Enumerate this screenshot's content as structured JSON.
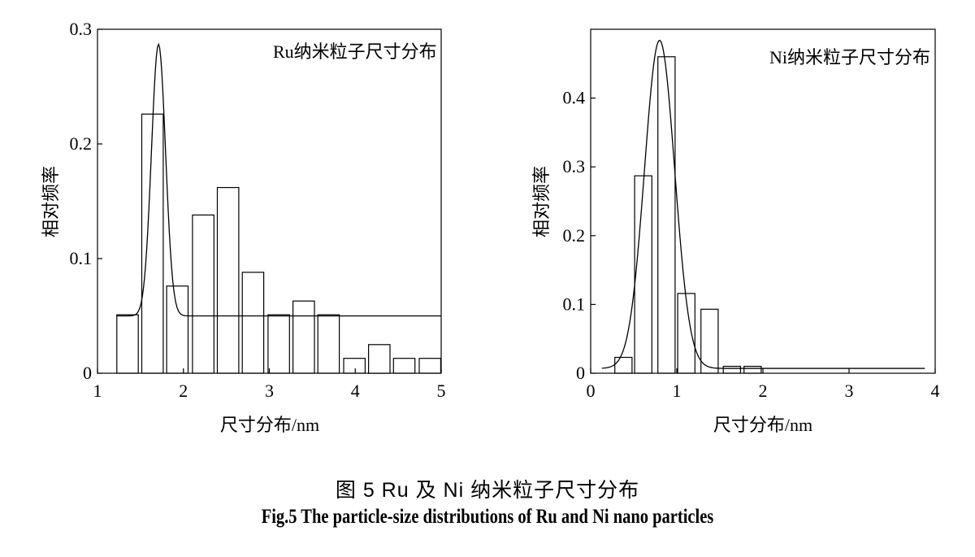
{
  "caption": {
    "cn": "图 5   Ru 及 Ni 纳米粒子尺寸分布",
    "en": "Fig.5 The particle-size distributions of Ru and Ni nano particles"
  },
  "chart_data": [
    {
      "type": "bar",
      "title": "Ru纳米粒子尺寸分布",
      "xlabel": "尺寸分布/nm",
      "ylabel": "相对频率",
      "xlim": [
        1,
        5
      ],
      "ylim": [
        0,
        0.3
      ],
      "xticks": [
        "1",
        "2",
        "3",
        "4",
        "5"
      ],
      "yticks": [
        "0",
        "0.1",
        "0.2",
        "0.3"
      ],
      "bin_width": 0.25,
      "bins": [
        {
          "x": 1.35,
          "y": 0.051
        },
        {
          "x": 1.64,
          "y": 0.226
        },
        {
          "x": 1.93,
          "y": 0.076
        },
        {
          "x": 2.23,
          "y": 0.138
        },
        {
          "x": 2.52,
          "y": 0.162
        },
        {
          "x": 2.81,
          "y": 0.088
        },
        {
          "x": 3.11,
          "y": 0.051
        },
        {
          "x": 3.4,
          "y": 0.063
        },
        {
          "x": 3.69,
          "y": 0.051
        },
        {
          "x": 3.99,
          "y": 0.013
        },
        {
          "x": 4.28,
          "y": 0.025
        },
        {
          "x": 4.57,
          "y": 0.013
        },
        {
          "x": 4.87,
          "y": 0.013
        }
      ],
      "fit_curve": {
        "baseline": 0.05,
        "amplitude": 0.237,
        "center": 1.71,
        "sigma": 0.082,
        "x_start": 1.22,
        "x_end": 5.0
      }
    },
    {
      "type": "bar",
      "title": "Ni纳米粒子尺寸分布",
      "xlabel": "尺寸分布/nm",
      "ylabel": "相对频率",
      "xlim": [
        0,
        4
      ],
      "ylim": [
        0,
        0.5
      ],
      "xticks": [
        "0",
        "1",
        "2",
        "3",
        "4"
      ],
      "yticks": [
        "0",
        "0.1",
        "0.2",
        "0.3",
        "0.4"
      ],
      "bin_width": 0.2,
      "bins": [
        {
          "x": 0.38,
          "y": 0.023
        },
        {
          "x": 0.61,
          "y": 0.287
        },
        {
          "x": 0.88,
          "y": 0.46
        },
        {
          "x": 1.11,
          "y": 0.116
        },
        {
          "x": 1.38,
          "y": 0.093
        },
        {
          "x": 1.64,
          "y": 0.01
        },
        {
          "x": 1.88,
          "y": 0.01
        }
      ],
      "fit_curve": {
        "baseline": 0.007,
        "amplitude": 0.477,
        "center": 0.8,
        "sigma": 0.175,
        "x_start": 0.13,
        "x_end": 3.88
      }
    }
  ]
}
